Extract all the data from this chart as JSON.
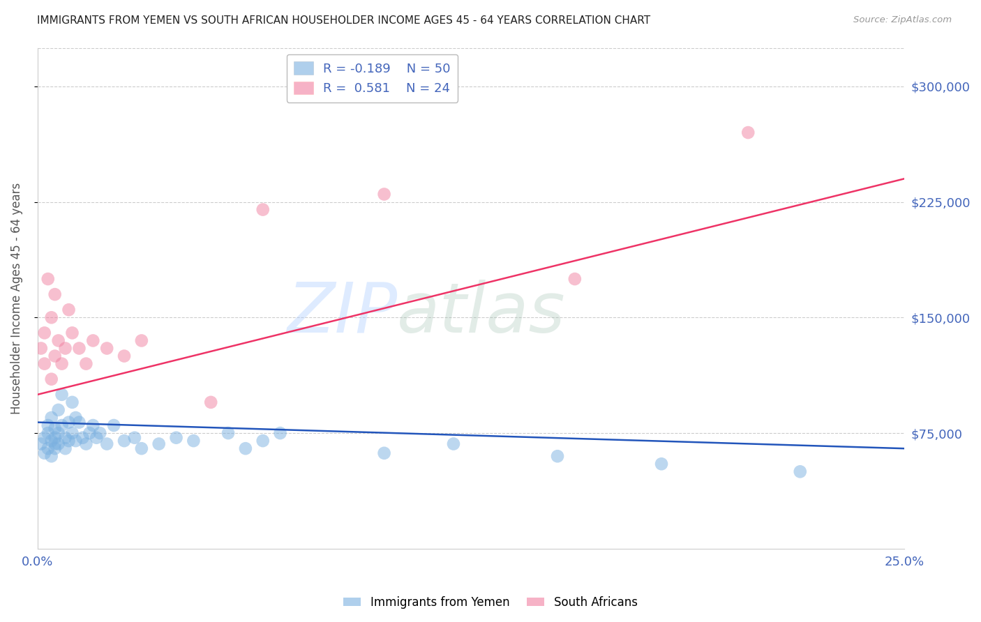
{
  "title": "IMMIGRANTS FROM YEMEN VS SOUTH AFRICAN HOUSEHOLDER INCOME AGES 45 - 64 YEARS CORRELATION CHART",
  "source": "Source: ZipAtlas.com",
  "ylabel": "Householder Income Ages 45 - 64 years",
  "xlim": [
    0.0,
    0.25
  ],
  "ylim": [
    0,
    325000
  ],
  "yticks": [
    75000,
    150000,
    225000,
    300000
  ],
  "ytick_labels": [
    "$75,000",
    "$150,000",
    "$225,000",
    "$300,000"
  ],
  "xticks": [
    0.0,
    0.05,
    0.1,
    0.15,
    0.2,
    0.25
  ],
  "xtick_labels": [
    "0.0%",
    "",
    "",
    "",
    "",
    "25.0%"
  ],
  "blue_color": "#7ab0e0",
  "pink_color": "#f080a0",
  "blue_line_color": "#2255bb",
  "pink_line_color": "#ee3366",
  "title_color": "#222222",
  "axis_label_color": "#555555",
  "tick_color": "#4466bb",
  "background_color": "#ffffff",
  "grid_color": "#cccccc",
  "yemen_x": [
    0.001,
    0.002,
    0.002,
    0.003,
    0.003,
    0.003,
    0.004,
    0.004,
    0.004,
    0.005,
    0.005,
    0.005,
    0.005,
    0.006,
    0.006,
    0.006,
    0.007,
    0.007,
    0.008,
    0.008,
    0.009,
    0.009,
    0.01,
    0.01,
    0.011,
    0.011,
    0.012,
    0.013,
    0.014,
    0.015,
    0.016,
    0.017,
    0.018,
    0.02,
    0.022,
    0.025,
    0.028,
    0.03,
    0.035,
    0.04,
    0.045,
    0.055,
    0.06,
    0.065,
    0.07,
    0.1,
    0.12,
    0.15,
    0.18,
    0.22
  ],
  "yemen_y": [
    68000,
    62000,
    72000,
    75000,
    65000,
    80000,
    70000,
    60000,
    85000,
    72000,
    68000,
    78000,
    65000,
    90000,
    75000,
    68000,
    100000,
    80000,
    72000,
    65000,
    82000,
    70000,
    95000,
    75000,
    85000,
    70000,
    82000,
    72000,
    68000,
    75000,
    80000,
    72000,
    75000,
    68000,
    80000,
    70000,
    72000,
    65000,
    68000,
    72000,
    70000,
    75000,
    65000,
    70000,
    75000,
    62000,
    68000,
    60000,
    55000,
    50000
  ],
  "sa_x": [
    0.001,
    0.002,
    0.002,
    0.003,
    0.004,
    0.004,
    0.005,
    0.005,
    0.006,
    0.007,
    0.008,
    0.009,
    0.01,
    0.012,
    0.014,
    0.016,
    0.02,
    0.025,
    0.03,
    0.05,
    0.065,
    0.1,
    0.155,
    0.205
  ],
  "sa_y": [
    130000,
    120000,
    140000,
    175000,
    110000,
    150000,
    125000,
    165000,
    135000,
    120000,
    130000,
    155000,
    140000,
    130000,
    120000,
    135000,
    130000,
    125000,
    135000,
    95000,
    220000,
    230000,
    175000,
    270000
  ],
  "blue_line_x": [
    0.0,
    0.25
  ],
  "blue_line_y": [
    82000,
    65000
  ],
  "pink_line_x": [
    0.0,
    0.25
  ],
  "pink_line_y": [
    100000,
    240000
  ]
}
